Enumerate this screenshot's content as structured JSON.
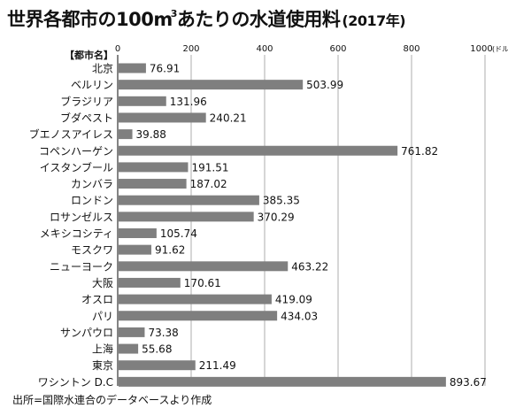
{
  "title": {
    "main": "世界各都市の100m",
    "superscript": "3",
    "rest": "あたりの水道使用料",
    "year": "(2017年)"
  },
  "chart_data": {
    "type": "bar",
    "orientation": "horizontal",
    "title": "世界各都市の100m³あたりの水道使用料(2017年)",
    "category_header": "【都市名】",
    "unit": "(ドル)",
    "xlim": [
      0,
      1000
    ],
    "xticks": [
      0,
      200,
      400,
      600,
      800,
      1000
    ],
    "grid": true,
    "bar_color": "#7f7f7f",
    "categories": [
      "北京",
      "ベルリン",
      "ブラジリア",
      "ブダペスト",
      "ブエノスアイレス",
      "コペンハーゲン",
      "イスタンブール",
      "カンバラ",
      "ロンドン",
      "ロサンゼルス",
      "メキシコシティ",
      "モスクワ",
      "ニューヨーク",
      "大阪",
      "オスロ",
      "パリ",
      "サンパウロ",
      "上海",
      "東京",
      "ワシントン D.C"
    ],
    "values": [
      76.91,
      503.99,
      131.96,
      240.21,
      39.88,
      761.82,
      191.51,
      187.02,
      385.35,
      370.29,
      105.74,
      91.62,
      463.22,
      170.61,
      419.09,
      434.03,
      73.38,
      55.68,
      211.49,
      893.67
    ],
    "labels": [
      "76.91",
      "503.99",
      "131.96",
      "240.21",
      "39.88",
      "761.82",
      "191.51",
      "187.02",
      "385.35",
      "370.29",
      "105.74",
      "91.62",
      "463.22",
      "170.61",
      "419.09",
      "434.03",
      "73.38",
      "55.68",
      "211.49",
      "893.67"
    ]
  },
  "source": "出所=国際水連合のデータベースより作成"
}
